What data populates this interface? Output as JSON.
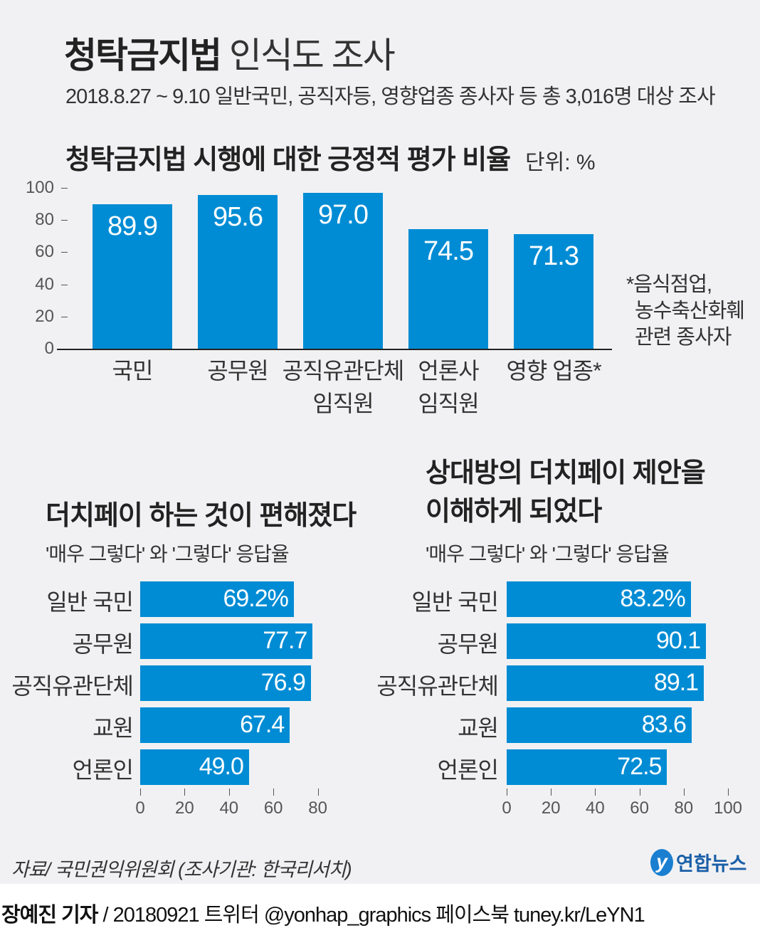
{
  "header": {
    "title_bold": "청탁금지법",
    "title_light": "인식도 조사",
    "subtitle": "2018.8.27 ~ 9.10 일반국민, 공직자등, 영향업종 종사자 등 총 3,016명 대상 조사"
  },
  "colors": {
    "bar": "#008cd4",
    "background": "#f1f1f3"
  },
  "chart_data": [
    {
      "type": "bar",
      "title": "청탁금지법 시행에 대한 긍정적 평가 비율",
      "unit": "단위: %",
      "categories": [
        "국민",
        "공무원",
        "공직유관단체\n임직원",
        "언론사\n임직원",
        "영향 업종*"
      ],
      "values": [
        89.9,
        95.6,
        97.0,
        74.5,
        71.3
      ],
      "value_labels": [
        "89.9",
        "95.6",
        "97.0",
        "74.5",
        "71.3"
      ],
      "yticks": [
        "0",
        "20",
        "40",
        "60",
        "80",
        "100"
      ],
      "ylim": [
        0,
        100
      ],
      "note": [
        "*음식점업,",
        "농수축산화훼",
        "관련 종사자"
      ]
    },
    {
      "type": "bar",
      "orientation": "horizontal",
      "title": "더치페이 하는 것이 편해졌다",
      "subtitle": "'매우 그렇다' 와 '그렇다' 응답율",
      "categories": [
        "일반 국민",
        "공무원",
        "공직유관단체",
        "교원",
        "언론인"
      ],
      "values": [
        69.2,
        77.7,
        76.9,
        67.4,
        49.0
      ],
      "value_labels": [
        "69.2%",
        "77.7",
        "76.9",
        "67.4",
        "49.0"
      ],
      "xticks": [
        "0",
        "20",
        "40",
        "60",
        "80"
      ],
      "xlim": [
        0,
        80
      ]
    },
    {
      "type": "bar",
      "orientation": "horizontal",
      "title": "상대방의 더치페이 제안을\n이해하게 되었다",
      "subtitle": "'매우 그렇다' 와 '그렇다' 응답율",
      "categories": [
        "일반 국민",
        "공무원",
        "공직유관단체",
        "교원",
        "언론인"
      ],
      "values": [
        83.2,
        90.1,
        89.1,
        83.6,
        72.5
      ],
      "value_labels": [
        "83.2%",
        "90.1",
        "89.1",
        "83.6",
        "72.5"
      ],
      "xticks": [
        "0",
        "20",
        "40",
        "60",
        "80",
        "100"
      ],
      "xlim": [
        0,
        100
      ]
    }
  ],
  "footer": {
    "source": "자료/ 국민권익위원회 (조사기관: 한국리서치)",
    "logo": "연합뉴스",
    "byline_bold": "장예진 기자",
    "byline": " / 20180921 트위터 @yonhap_graphics  페이스북 tuney.kr/LeYN1"
  }
}
